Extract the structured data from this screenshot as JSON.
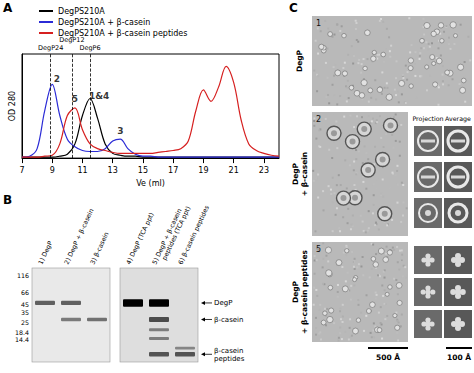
{
  "panel_labels": [
    "A",
    "B",
    "C"
  ],
  "chart_data": {
    "type": "line",
    "x_label": "Ve (ml)",
    "y_label": "OD 280",
    "x": [
      7,
      7.5,
      8,
      8.5,
      9,
      9.5,
      10,
      10.5,
      11,
      11.5,
      12,
      12.5,
      13,
      13.5,
      14,
      14.5,
      15,
      15.5,
      16,
      16.5,
      17,
      17.5,
      18,
      18.5,
      19,
      19.5,
      20,
      20.5,
      21,
      21.5,
      22,
      22.5,
      23,
      23.5,
      24
    ],
    "series": [
      {
        "name": "DegPS210A",
        "color": "#000000",
        "values": [
          0.01,
          0.01,
          0.01,
          0.01,
          0.01,
          0.02,
          0.04,
          0.15,
          0.45,
          0.63,
          0.42,
          0.15,
          0.05,
          0.03,
          0.02,
          0.02,
          0.01,
          0.01,
          0.01,
          0.01,
          0.01,
          0.01,
          0.01,
          0.01,
          0.01,
          0.01,
          0.01,
          0.01,
          0.01,
          0.01,
          0.01,
          0.01,
          0.01,
          0.01,
          0.01
        ]
      },
      {
        "name": "DegPS210A + β-casein",
        "color": "#2b2bd6",
        "values": [
          0.01,
          0.02,
          0.1,
          0.5,
          0.78,
          0.45,
          0.2,
          0.12,
          0.08,
          0.07,
          0.07,
          0.1,
          0.18,
          0.2,
          0.1,
          0.04,
          0.02,
          0.02,
          0.01,
          0.01,
          0.01,
          0.01,
          0.01,
          0.01,
          0.01,
          0.01,
          0.01,
          0.01,
          0.01,
          0.01,
          0.01,
          0.01,
          0.01,
          0.01,
          0.01
        ]
      },
      {
        "name": "DegPS210A + β-casein peptides",
        "color": "#d62020",
        "values": [
          0.01,
          0.01,
          0.01,
          0.02,
          0.03,
          0.15,
          0.45,
          0.53,
          0.3,
          0.15,
          0.1,
          0.08,
          0.06,
          0.05,
          0.05,
          0.05,
          0.05,
          0.05,
          0.06,
          0.07,
          0.08,
          0.1,
          0.18,
          0.5,
          0.72,
          0.6,
          0.75,
          0.97,
          0.8,
          0.4,
          0.15,
          0.08,
          0.05,
          0.03,
          0.02
        ]
      }
    ],
    "xlim": [
      7,
      24
    ],
    "xticks": [
      7,
      9,
      11,
      13,
      15,
      17,
      19,
      21,
      23
    ],
    "ylim": [
      0,
      1.1
    ],
    "yticks": [],
    "tick_labels": "x",
    "legend": "top-left",
    "annotations": {
      "reference_lines": [
        {
          "label": "DegP24",
          "x": 8.9
        },
        {
          "label": "DegP12",
          "x": 10.3
        },
        {
          "label": "DegP6",
          "x": 11.5
        }
      ],
      "peak_labels": [
        {
          "text": "2",
          "x": 9.3,
          "y": 0.84
        },
        {
          "text": "5",
          "x": 10.5,
          "y": 0.62
        },
        {
          "text": "1&4",
          "x": 12.1,
          "y": 0.66
        },
        {
          "text": "3",
          "x": 13.5,
          "y": 0.29
        }
      ]
    }
  },
  "gel": {
    "mw_markers": [
      116,
      66,
      45,
      35,
      25,
      18.4,
      14.4
    ],
    "mw_range": [
      150,
      7
    ],
    "gels": [
      {
        "lanes": [
          {
            "label": [
              "1) DegP"
            ],
            "bands": [
              {
                "kda": 48,
                "intensity": 0.45
              }
            ]
          },
          {
            "label": [
              "2) DegP + β-casein"
            ],
            "bands": [
              {
                "kda": 48,
                "intensity": 0.45
              },
              {
                "kda": 28,
                "intensity": 0.3
              }
            ]
          },
          {
            "label": [
              "3) β-casein"
            ],
            "bands": [
              {
                "kda": 28,
                "intensity": 0.35
              }
            ]
          }
        ]
      },
      {
        "lanes": [
          {
            "label": [
              "4) DegP (TCA ppt)"
            ],
            "bands": [
              {
                "kda": 48,
                "intensity": 1
              }
            ]
          },
          {
            "label": [
              "5) DegP + β-casein",
              "peptides (TCA ppt)"
            ],
            "bands": [
              {
                "kda": 48,
                "intensity": 1
              },
              {
                "kda": 28,
                "intensity": 0.55
              },
              {
                "kda": 20,
                "intensity": 0.25
              },
              {
                "kda": 15,
                "intensity": 0.25
              },
              {
                "kda": 9,
                "intensity": 0.5
              }
            ]
          },
          {
            "label": [
              "6) β-casein peptides"
            ],
            "bands": [
              {
                "kda": 11,
                "intensity": 0.2
              },
              {
                "kda": 9,
                "intensity": 0.5
              }
            ]
          }
        ]
      }
    ],
    "band_labels": [
      {
        "text": [
          "DegP"
        ],
        "kda": 48
      },
      {
        "text": [
          "β-casein"
        ],
        "kda": 28
      },
      {
        "text": [
          "β-casein",
          "peptides"
        ],
        "kda": 9
      }
    ]
  },
  "micrographs": {
    "column_headers": [
      "Projection",
      "Average"
    ],
    "panels": [
      {
        "number": "1",
        "label": [
          "DegP"
        ]
      },
      {
        "number": "2",
        "label": [
          "DegP",
          "+ β-casein"
        ],
        "class_averages": 3
      },
      {
        "number": "5",
        "label": [
          "DegP",
          "+ β-casein peptides"
        ],
        "class_averages": 3
      }
    ],
    "scale_bars": [
      "500 Å",
      "100 Å"
    ]
  }
}
